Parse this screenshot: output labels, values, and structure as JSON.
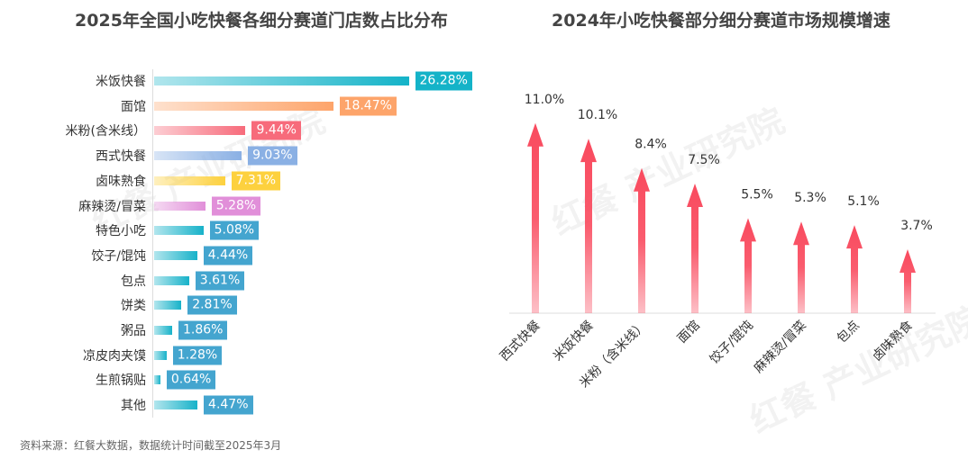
{
  "chart_data": [
    {
      "type": "bar",
      "orientation": "horizontal",
      "title": "2025年全国小吃快餐各细分赛道门店数占比分布",
      "categories": [
        "米饭快餐",
        "面馆",
        "米粉(含米线）",
        "西式快餐",
        "卤味熟食",
        "麻辣烫/冒菜",
        "特色小吃",
        "饺子/馄饨",
        "包点",
        "饼类",
        "粥品",
        "凉皮肉夹馍",
        "生煎锅贴",
        "其他"
      ],
      "values": [
        26.28,
        18.47,
        9.44,
        9.03,
        7.31,
        5.28,
        5.08,
        4.44,
        3.61,
        2.81,
        1.86,
        1.28,
        0.64,
        4.47
      ],
      "labels": [
        "26.28%",
        "18.47%",
        "9.44%",
        "9.03%",
        "7.31%",
        "5.28%",
        "5.08%",
        "4.44%",
        "3.61%",
        "2.81%",
        "1.86%",
        "1.28%",
        "0.64%",
        "4.47%"
      ],
      "colors": [
        "#14b3c8",
        "#fda46a",
        "#f76b7b",
        "#8ab0e4",
        "#fdd13e",
        "#e18fd9",
        "#17b2c9",
        "#17b2c9",
        "#17b2c9",
        "#17b2c9",
        "#17b2c9",
        "#17b2c9",
        "#17b2c9",
        "#17b2c9"
      ],
      "label_colors": [
        "#14b3c8",
        "#fda46a",
        "#f76b7b",
        "#8ab0e4",
        "#fdd13e",
        "#e18fd9",
        "#44a5cf",
        "#44a5cf",
        "#44a5cf",
        "#44a5cf",
        "#44a5cf",
        "#44a5cf",
        "#44a5cf",
        "#44a5cf"
      ],
      "unit": "%"
    },
    {
      "type": "bar",
      "style": "arrow",
      "title": "2024年小吃快餐部分细分赛道市场规模增速",
      "categories": [
        "西式快餐",
        "米饭快餐",
        "米粉（含米线）",
        "面馆",
        "饺子/馄饨",
        "麻辣烫/冒菜",
        "包点",
        "卤味熟食"
      ],
      "values": [
        11.0,
        10.1,
        8.4,
        7.5,
        5.5,
        5.3,
        5.1,
        3.7
      ],
      "labels": [
        "11.0%",
        "10.1%",
        "8.4%",
        "7.5%",
        "5.5%",
        "5.3%",
        "5.1%",
        "3.7%"
      ],
      "color": "#f94a5e",
      "unit": "%"
    }
  ],
  "source": "资料来源：红餐大数据，数据统计时间截至2025年3月",
  "watermark": "红餐 产业研究院"
}
